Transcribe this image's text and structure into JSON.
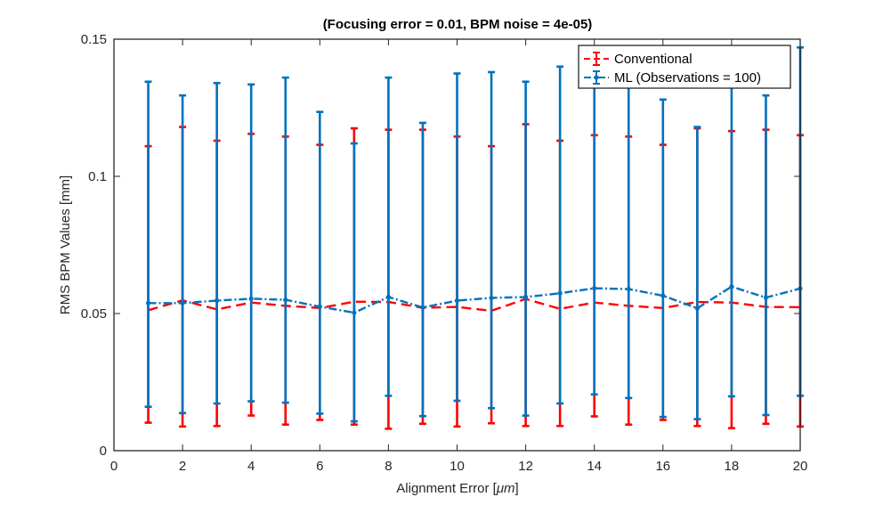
{
  "chart_data": {
    "type": "line",
    "title": "(Focusing error = 0.01, BPM noise = 4e-05)",
    "xlabel_prefix": "Alignment Error [",
    "xlabel_unit": "μm",
    "xlabel_suffix": "]",
    "ylabel": "RMS BPM Values [mm]",
    "xlim": [
      0,
      20
    ],
    "ylim": [
      0,
      0.15
    ],
    "x_ticks": [
      0,
      2,
      4,
      6,
      8,
      10,
      12,
      14,
      16,
      18,
      20
    ],
    "y_ticks": [
      0,
      0.05,
      0.1,
      0.15
    ],
    "y_tick_labels": [
      "0",
      "0.05",
      "0.1",
      "0.15"
    ],
    "legend_position": "top-right",
    "x": [
      1,
      2,
      3,
      4,
      5,
      6,
      7,
      8,
      9,
      10,
      11,
      12,
      13,
      14,
      15,
      16,
      17,
      18,
      19,
      20
    ],
    "series": [
      {
        "name": "Conventional",
        "color": "#ff0000",
        "style": "dashed",
        "y": [
          0.0512,
          0.0548,
          0.0515,
          0.054,
          0.0528,
          0.052,
          0.0543,
          0.0542,
          0.0521,
          0.0524,
          0.051,
          0.0553,
          0.0517,
          0.054,
          0.0528,
          0.052,
          0.0542,
          0.054,
          0.0524,
          0.0523
        ],
        "lower": [
          0.0102,
          0.0088,
          0.009,
          0.0128,
          0.0095,
          0.0112,
          0.0095,
          0.008,
          0.0098,
          0.0088,
          0.01,
          0.009,
          0.009,
          0.0125,
          0.0095,
          0.0112,
          0.009,
          0.0082,
          0.0098,
          0.0088
        ],
        "upper": [
          0.111,
          0.118,
          0.113,
          0.1155,
          0.1145,
          0.1115,
          0.1175,
          0.117,
          0.117,
          0.1145,
          0.111,
          0.119,
          0.113,
          0.115,
          0.1145,
          0.1115,
          0.1175,
          0.1165,
          0.117,
          0.115
        ]
      },
      {
        "name": "ML (Observations = 100)",
        "color": "#0072bd",
        "style": "dashdot",
        "y": [
          0.0538,
          0.0538,
          0.0547,
          0.0554,
          0.055,
          0.0525,
          0.0503,
          0.056,
          0.0522,
          0.0547,
          0.0557,
          0.056,
          0.0574,
          0.0592,
          0.0589,
          0.0565,
          0.0519,
          0.0598,
          0.0558,
          0.0591
        ],
        "lower": [
          0.016,
          0.0137,
          0.0172,
          0.018,
          0.0175,
          0.0135,
          0.0107,
          0.02,
          0.0126,
          0.0182,
          0.0155,
          0.0128,
          0.0172,
          0.0205,
          0.0192,
          0.0123,
          0.0115,
          0.0198,
          0.013,
          0.02
        ],
        "upper": [
          0.1345,
          0.1295,
          0.134,
          0.1335,
          0.136,
          0.1235,
          0.112,
          0.136,
          0.1195,
          0.1375,
          0.138,
          0.1345,
          0.14,
          0.142,
          0.138,
          0.128,
          0.118,
          0.137,
          0.1295,
          0.147
        ]
      }
    ]
  }
}
